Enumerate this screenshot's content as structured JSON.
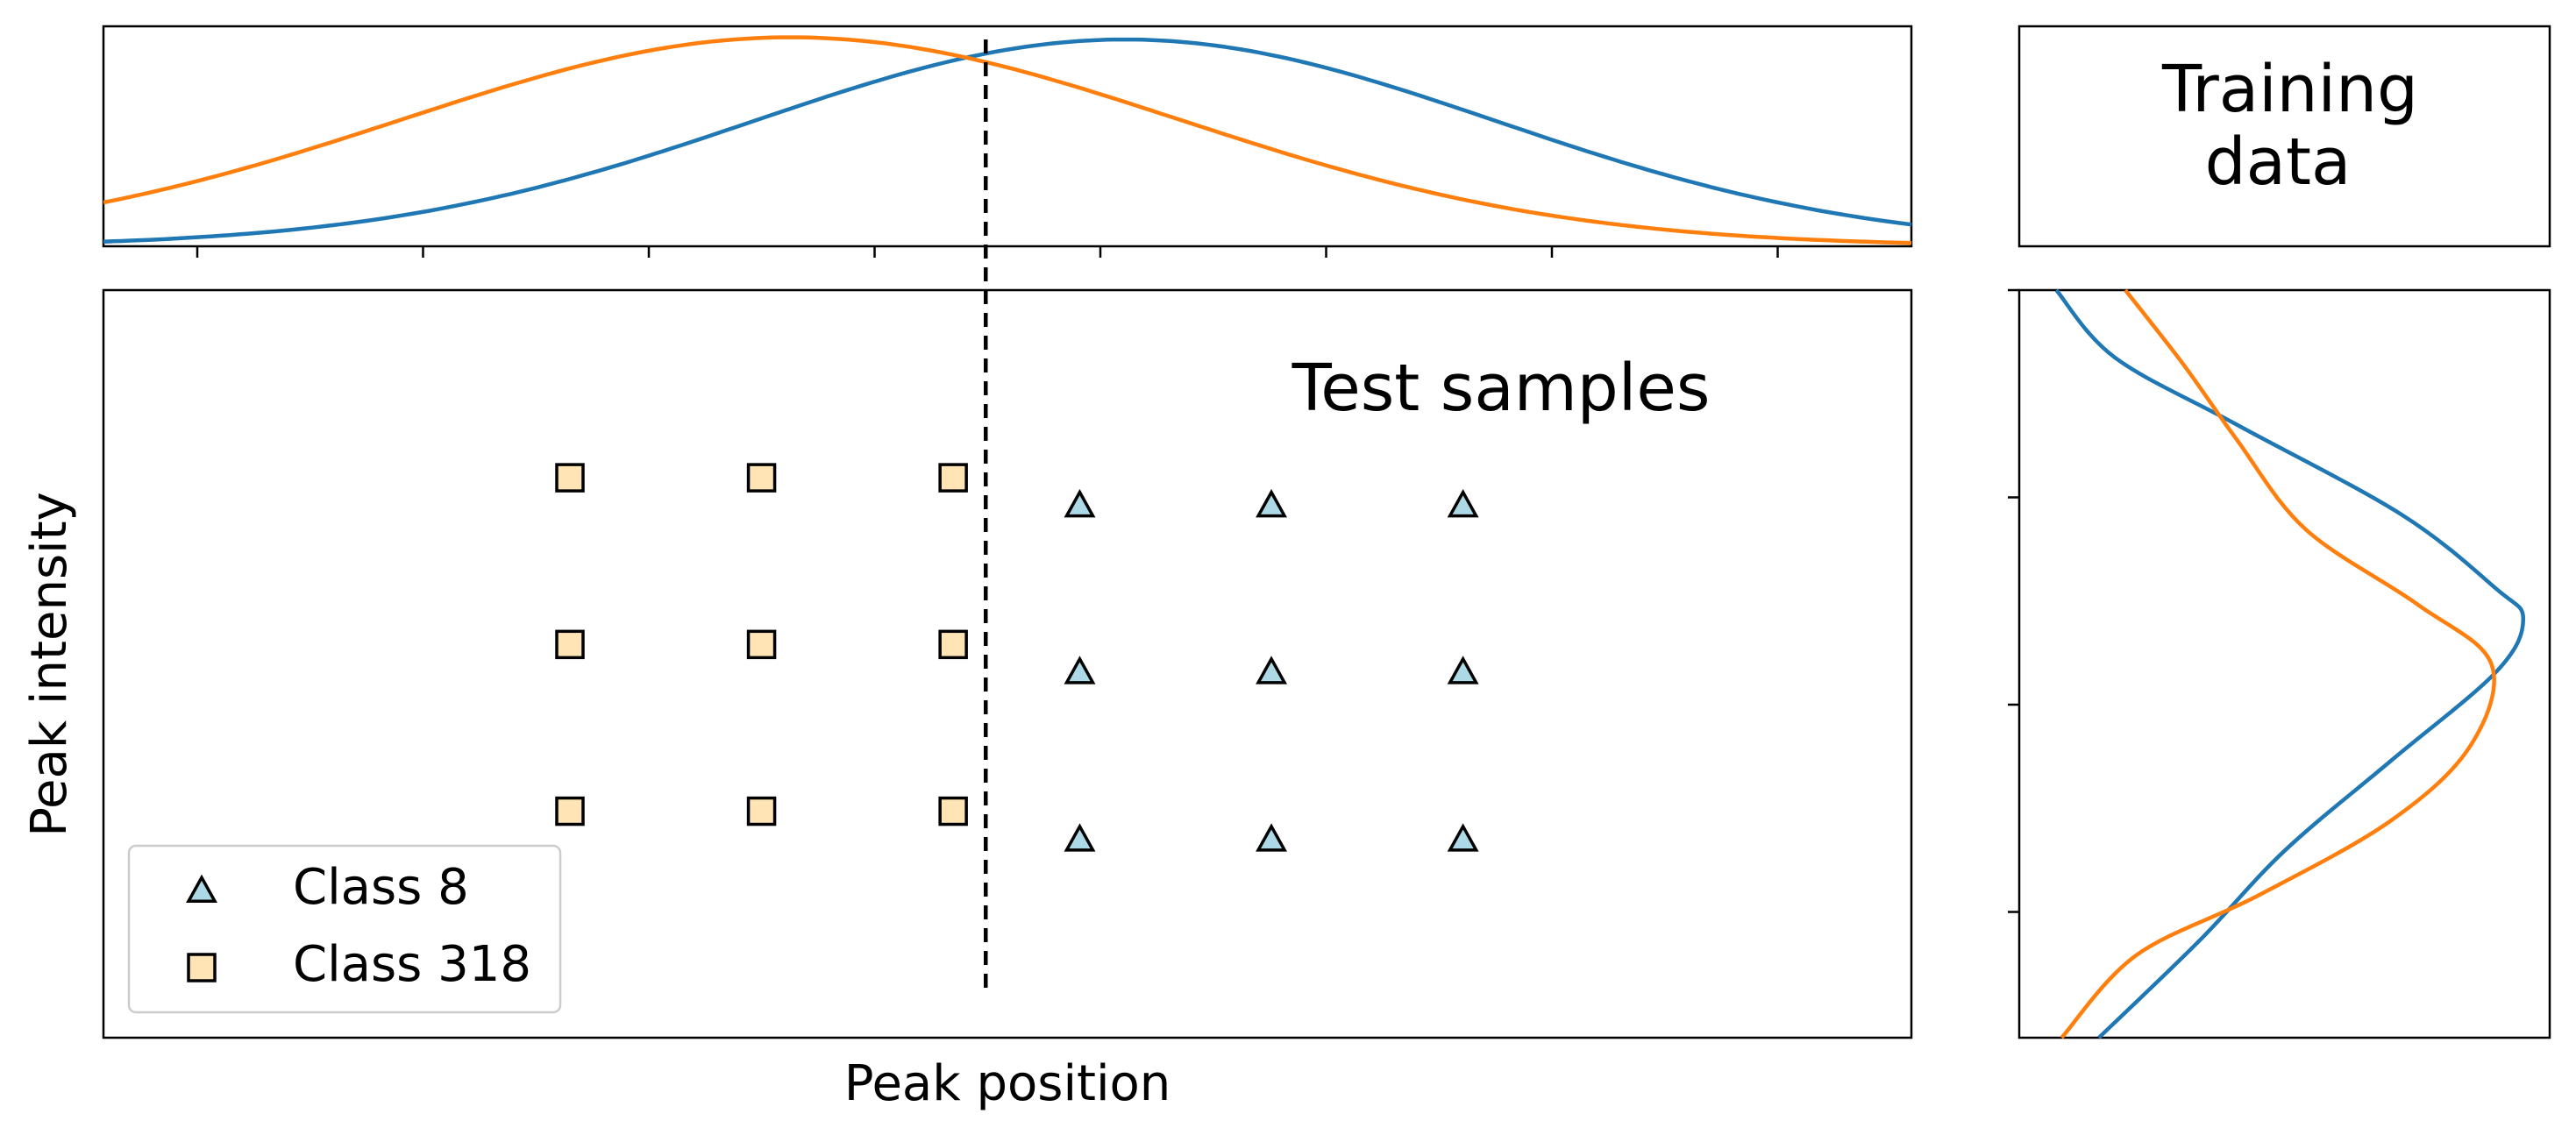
{
  "colors": {
    "class_8_line": "#1f77b4",
    "class_318_line": "#ff7f0e",
    "class_8_marker_fill": "#add8e6",
    "class_318_marker_fill": "#ffe4b5",
    "marker_edge": "#000000",
    "boundary": "#000000"
  },
  "chart_data": [
    {
      "id": "top-marginal",
      "type": "line",
      "description_printed": "",
      "xlabel": "",
      "ylabel": "",
      "xlim": [
        0,
        100
      ],
      "ylim": [
        0,
        1.0
      ],
      "ticks_x_count": 8,
      "ticks_labeled": false,
      "series": [
        {
          "name": "Class 8",
          "color_key": "class_8_line",
          "distribution": {
            "mean": 56.5,
            "std": 20.5,
            "peak": 0.94
          }
        },
        {
          "name": "Class 318",
          "color_key": "class_318_line",
          "distribution": {
            "mean": 38.0,
            "std": 21.5,
            "peak": 0.95
          }
        }
      ],
      "boundary_x": 48.8
    },
    {
      "id": "main-scatter",
      "type": "scatter",
      "title": "",
      "annotation": "Test samples",
      "xlabel": "Peak position",
      "ylabel": "Peak intensity",
      "xlim": [
        0,
        100
      ],
      "ylim": [
        0,
        100
      ],
      "legend_position": "bottom-left",
      "legend": [
        {
          "label": "Class 8",
          "marker": "triangle",
          "fill_key": "class_8_marker_fill"
        },
        {
          "label": "Class 318",
          "marker": "square",
          "fill_key": "class_318_marker_fill"
        }
      ],
      "series": [
        {
          "name": "Class 8",
          "marker": "triangle",
          "points": [
            [
              54.0,
              71.0
            ],
            [
              64.6,
              71.0
            ],
            [
              75.2,
              71.0
            ],
            [
              54.0,
              48.7
            ],
            [
              64.6,
              48.7
            ],
            [
              75.2,
              48.7
            ],
            [
              54.0,
              26.3
            ],
            [
              64.6,
              26.3
            ],
            [
              75.2,
              26.3
            ]
          ]
        },
        {
          "name": "Class 318",
          "marker": "square",
          "points": [
            [
              25.8,
              74.9
            ],
            [
              36.4,
              74.9
            ],
            [
              47.0,
              74.9
            ],
            [
              25.8,
              52.6
            ],
            [
              36.4,
              52.6
            ],
            [
              47.0,
              52.6
            ],
            [
              25.8,
              30.3
            ],
            [
              36.4,
              30.3
            ],
            [
              47.0,
              30.3
            ]
          ]
        }
      ],
      "boundary_x": 48.8,
      "boundary_y_range": [
        5.8,
        100
      ]
    },
    {
      "id": "training-data-label",
      "type": "table",
      "lines": [
        "Training",
        "data"
      ]
    },
    {
      "id": "right-marginal",
      "type": "line",
      "orientation": "vertical",
      "xlabel": "",
      "ylabel": "",
      "ylim": [
        0,
        100
      ],
      "ticks_y_count": 4,
      "ticks_labeled": false,
      "series": [
        {
          "name": "Class 8",
          "color_key": "class_8_line",
          "points": [
            [
              0.07,
              100
            ],
            [
              0.18,
              91
            ],
            [
              0.41,
              82
            ],
            [
              0.72,
              70
            ],
            [
              0.9,
              60
            ],
            [
              0.95,
              56
            ],
            [
              0.9,
              49
            ],
            [
              0.7,
              37
            ],
            [
              0.5,
              25
            ],
            [
              0.34,
              13
            ],
            [
              0.15,
              0
            ]
          ]
        },
        {
          "name": "Class 318",
          "color_key": "class_318_line",
          "points": [
            [
              0.2,
              100
            ],
            [
              0.31,
              90
            ],
            [
              0.41,
              80
            ],
            [
              0.54,
              68
            ],
            [
              0.75,
              58
            ],
            [
              0.89,
              50
            ],
            [
              0.85,
              39
            ],
            [
              0.7,
              29
            ],
            [
              0.45,
              19
            ],
            [
              0.22,
              11
            ],
            [
              0.08,
              0
            ]
          ]
        }
      ]
    }
  ]
}
